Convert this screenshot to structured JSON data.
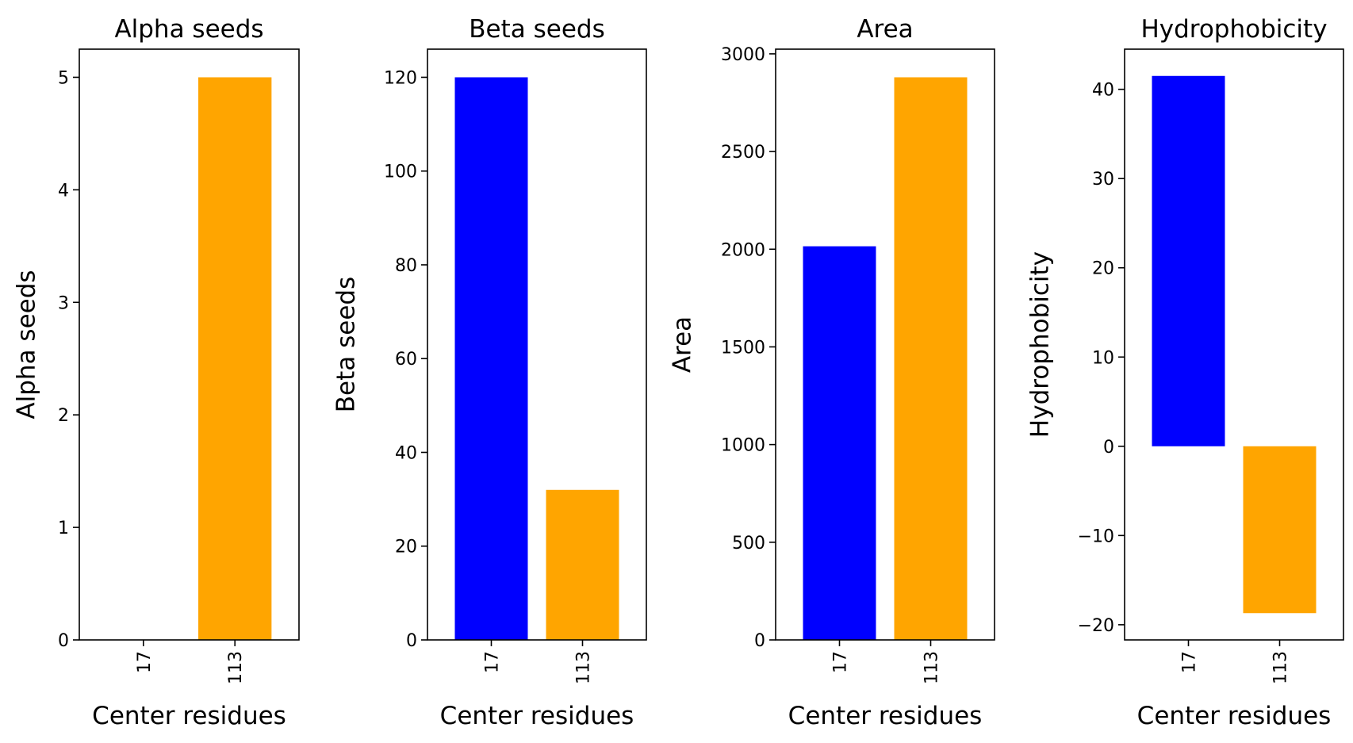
{
  "colors": {
    "series_17": "#0000ff",
    "series_113": "#ffa500",
    "axes": "#000000",
    "background": "#ffffff"
  },
  "chart_data": [
    {
      "type": "bar",
      "title": "Alpha seeds",
      "xlabel": "Center residues",
      "ylabel": "Alpha seeds",
      "categories": [
        "17",
        "113"
      ],
      "values": [
        0,
        5
      ],
      "ylim": [
        0,
        5.25
      ],
      "yticks": [
        0,
        1,
        2,
        3,
        4,
        5
      ],
      "ytick_labels": [
        "0",
        "1",
        "2",
        "3",
        "4",
        "5"
      ],
      "grid": false
    },
    {
      "type": "bar",
      "title": "Beta seeds",
      "xlabel": "Center residues",
      "ylabel": "Beta seeds",
      "categories": [
        "17",
        "113"
      ],
      "values": [
        120,
        32
      ],
      "ylim": [
        0,
        126
      ],
      "yticks": [
        0,
        20,
        40,
        60,
        80,
        100,
        120
      ],
      "ytick_labels": [
        "0",
        "20",
        "40",
        "60",
        "80",
        "100",
        "120"
      ],
      "grid": false
    },
    {
      "type": "bar",
      "title": "Area",
      "xlabel": "Center residues",
      "ylabel": "Area",
      "categories": [
        "17",
        "113"
      ],
      "values": [
        2015,
        2880
      ],
      "ylim": [
        0,
        3024
      ],
      "yticks": [
        0,
        500,
        1000,
        1500,
        2000,
        2500,
        3000
      ],
      "ytick_labels": [
        "0",
        "500",
        "1000",
        "1500",
        "2000",
        "2500",
        "3000"
      ],
      "grid": false
    },
    {
      "type": "bar",
      "title": "Hydrophobicity",
      "xlabel": "Center residues",
      "ylabel": "Hydrophobicity",
      "categories": [
        "17",
        "113"
      ],
      "values": [
        41.5,
        -18.7
      ],
      "ylim": [
        -21.7,
        44.5
      ],
      "yticks": [
        -20,
        -10,
        0,
        10,
        20,
        30,
        40
      ],
      "ytick_labels": [
        "−20",
        "−10",
        "0",
        "10",
        "20",
        "30",
        "40"
      ],
      "grid": false
    }
  ]
}
